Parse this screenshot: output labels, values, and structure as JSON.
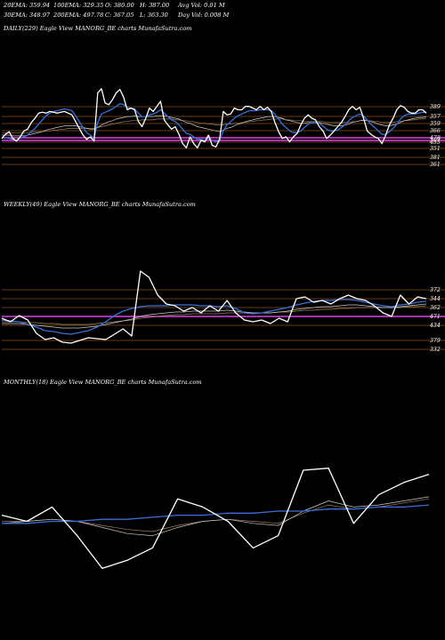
{
  "header": {
    "row1": [
      "20EMA: 359.94",
      "100EMA: 329.35",
      "O: 380.00",
      "H: 387.00",
      "Avg Vol: 0.01 M"
    ],
    "row2": [
      "30EMA: 348.97",
      "200EMA: 497.78",
      "C: 367.05",
      "L: 363.30",
      "Day Vol: 0.008 M"
    ]
  },
  "colors": {
    "background": "#000000",
    "price": "#ffffff",
    "ema_fast": "#3a6fd8",
    "ema_mid": "#c9c9c9",
    "ema_slow": "#a08060",
    "level_line": "#c8782a",
    "highlight_line": "#e040e0"
  },
  "chart_data": [
    {
      "type": "line",
      "title": "DAILY(229) Eagle   View  MANORG_BE charts MunafaSutra.com",
      "level_labels": [
        "389",
        "357",
        "359",
        "366",
        "478",
        "397",
        "455",
        "351",
        "381",
        "361"
      ],
      "series": [
        {
          "values": [
            0.36,
            0.41,
            0.44,
            0.36,
            0.33,
            0.38,
            0.45,
            0.47,
            0.55,
            0.6,
            0.66,
            0.67,
            0.66,
            0.68,
            0.67,
            0.66,
            0.67,
            0.68,
            0.66,
            0.64,
            0.56,
            0.48,
            0.4,
            0.35,
            0.38,
            0.33,
            0.9,
            0.95,
            0.78,
            0.76,
            0.82,
            0.9,
            0.94,
            0.85,
            0.7,
            0.72,
            0.7,
            0.56,
            0.5,
            0.6,
            0.72,
            0.68,
            0.74,
            0.8,
            0.58,
            0.52,
            0.47,
            0.5,
            0.41,
            0.3,
            0.25,
            0.38,
            0.3,
            0.25,
            0.34,
            0.32,
            0.4,
            0.28,
            0.26,
            0.35,
            0.68,
            0.64,
            0.65,
            0.72,
            0.7,
            0.7,
            0.74,
            0.74,
            0.72,
            0.7,
            0.74,
            0.7,
            0.73,
            0.68,
            0.55,
            0.44,
            0.36,
            0.38,
            0.32,
            0.38,
            0.42,
            0.52,
            0.6,
            0.64,
            0.6,
            0.58,
            0.5,
            0.45,
            0.36,
            0.4,
            0.45,
            0.5,
            0.55,
            0.62,
            0.7,
            0.74,
            0.7,
            0.73,
            0.6,
            0.45,
            0.41,
            0.38,
            0.36,
            0.3,
            0.4,
            0.52,
            0.6,
            0.7,
            0.75,
            0.73,
            0.68,
            0.66,
            0.66,
            0.7,
            0.7,
            0.66
          ]
        },
        {
          "values": [
            0.36,
            0.37,
            0.36,
            0.35,
            0.34,
            0.36,
            0.38,
            0.4,
            0.44,
            0.48,
            0.53,
            0.58,
            0.63,
            0.66,
            0.68,
            0.69,
            0.7,
            0.71,
            0.7,
            0.69,
            0.63,
            0.56,
            0.49,
            0.43,
            0.4,
            0.36,
            0.55,
            0.65,
            0.67,
            0.69,
            0.71,
            0.74,
            0.77,
            0.76,
            0.73,
            0.72,
            0.71,
            0.66,
            0.62,
            0.62,
            0.64,
            0.65,
            0.67,
            0.7,
            0.66,
            0.62,
            0.58,
            0.56,
            0.52,
            0.47,
            0.42,
            0.41,
            0.38,
            0.35,
            0.35,
            0.34,
            0.36,
            0.34,
            0.32,
            0.33,
            0.45,
            0.52,
            0.56,
            0.6,
            0.63,
            0.65,
            0.67,
            0.69,
            0.69,
            0.69,
            0.7,
            0.7,
            0.7,
            0.69,
            0.65,
            0.59,
            0.53,
            0.49,
            0.45,
            0.43,
            0.43,
            0.45,
            0.49,
            0.53,
            0.55,
            0.55,
            0.54,
            0.51,
            0.47,
            0.45,
            0.45,
            0.46,
            0.49,
            0.52,
            0.57,
            0.61,
            0.63,
            0.65,
            0.63,
            0.58,
            0.53,
            0.49,
            0.45,
            0.41,
            0.41,
            0.44,
            0.48,
            0.53,
            0.59,
            0.63,
            0.65,
            0.65,
            0.65,
            0.66,
            0.67,
            0.67
          ]
        },
        {
          "values": [
            0.4,
            0.4,
            0.4,
            0.39,
            0.39,
            0.39,
            0.39,
            0.4,
            0.41,
            0.42,
            0.43,
            0.44,
            0.46,
            0.47,
            0.48,
            0.49,
            0.5,
            0.51,
            0.51,
            0.51,
            0.51,
            0.5,
            0.49,
            0.48,
            0.47,
            0.47,
            0.49,
            0.52,
            0.54,
            0.56,
            0.57,
            0.59,
            0.6,
            0.61,
            0.62,
            0.62,
            0.63,
            0.62,
            0.62,
            0.62,
            0.62,
            0.62,
            0.63,
            0.63,
            0.63,
            0.62,
            0.61,
            0.6,
            0.59,
            0.57,
            0.55,
            0.54,
            0.52,
            0.5,
            0.49,
            0.48,
            0.47,
            0.46,
            0.45,
            0.44,
            0.46,
            0.48,
            0.49,
            0.51,
            0.53,
            0.54,
            0.56,
            0.57,
            0.58,
            0.59,
            0.6,
            0.61,
            0.62,
            0.62,
            0.62,
            0.61,
            0.6,
            0.58,
            0.57,
            0.56,
            0.55,
            0.54,
            0.54,
            0.55,
            0.55,
            0.55,
            0.55,
            0.54,
            0.53,
            0.52,
            0.51,
            0.51,
            0.51,
            0.52,
            0.53,
            0.55,
            0.56,
            0.57,
            0.58,
            0.57,
            0.56,
            0.55,
            0.53,
            0.52,
            0.51,
            0.51,
            0.52,
            0.53,
            0.55,
            0.57,
            0.58,
            0.59,
            0.6,
            0.61,
            0.61,
            0.62
          ]
        },
        {
          "values": [
            0.43,
            0.43,
            0.43,
            0.43,
            0.43,
            0.43,
            0.43,
            0.43,
            0.43,
            0.44,
            0.44,
            0.44,
            0.45,
            0.45,
            0.46,
            0.46,
            0.47,
            0.47,
            0.48,
            0.48,
            0.48,
            0.48,
            0.48,
            0.48,
            0.48,
            0.48,
            0.49,
            0.5,
            0.51,
            0.52,
            0.53,
            0.54,
            0.55,
            0.56,
            0.56,
            0.57,
            0.57,
            0.57,
            0.58,
            0.58,
            0.58,
            0.58,
            0.59,
            0.59,
            0.59,
            0.59,
            0.59,
            0.58,
            0.58,
            0.57,
            0.57,
            0.56,
            0.56,
            0.55,
            0.54,
            0.54,
            0.53,
            0.53,
            0.52,
            0.52,
            0.52,
            0.53,
            0.53,
            0.54,
            0.54,
            0.55,
            0.55,
            0.56,
            0.56,
            0.57,
            0.57,
            0.58,
            0.58,
            0.59,
            0.59,
            0.59,
            0.59,
            0.58,
            0.58,
            0.57,
            0.57,
            0.57,
            0.56,
            0.56,
            0.56,
            0.56,
            0.56,
            0.56,
            0.55,
            0.55,
            0.55,
            0.55,
            0.55,
            0.55,
            0.55,
            0.56,
            0.56,
            0.57,
            0.57,
            0.57,
            0.57,
            0.56,
            0.56,
            0.55,
            0.55,
            0.55,
            0.55,
            0.56,
            0.56,
            0.57,
            0.57,
            0.58,
            0.58,
            0.59,
            0.59,
            0.6
          ]
        }
      ]
    },
    {
      "type": "line",
      "title": "WEEKLY(49) Eagle   View  MANORG_BE charts MunafaSutra.com",
      "level_labels": [
        "372",
        "344",
        "362",
        "471",
        "434",
        "379",
        "332"
      ],
      "series": [
        {
          "values": [
            0.42,
            0.38,
            0.45,
            0.4,
            0.25,
            0.18,
            0.2,
            0.15,
            0.14,
            0.17,
            0.2,
            0.19,
            0.18,
            0.24,
            0.3,
            0.22,
            0.95,
            0.88,
            0.68,
            0.58,
            0.56,
            0.5,
            0.54,
            0.48,
            0.56,
            0.5,
            0.62,
            0.48,
            0.4,
            0.38,
            0.4,
            0.36,
            0.42,
            0.38,
            0.64,
            0.66,
            0.6,
            0.62,
            0.58,
            0.64,
            0.68,
            0.64,
            0.62,
            0.56,
            0.48,
            0.44,
            0.68,
            0.58,
            0.66,
            0.64
          ]
        },
        {
          "values": [
            0.4,
            0.39,
            0.38,
            0.35,
            0.32,
            0.28,
            0.27,
            0.25,
            0.24,
            0.26,
            0.28,
            0.32,
            0.38,
            0.45,
            0.5,
            0.53,
            0.55,
            0.56,
            0.56,
            0.56,
            0.57,
            0.57,
            0.57,
            0.56,
            0.56,
            0.55,
            0.56,
            0.53,
            0.48,
            0.47,
            0.48,
            0.5,
            0.52,
            0.54,
            0.57,
            0.59,
            0.61,
            0.62,
            0.62,
            0.63,
            0.63,
            0.62,
            0.6,
            0.58,
            0.56,
            0.55,
            0.57,
            0.58,
            0.6,
            0.61
          ]
        },
        {
          "values": [
            0.36,
            0.36,
            0.36,
            0.35,
            0.34,
            0.33,
            0.32,
            0.31,
            0.31,
            0.31,
            0.32,
            0.33,
            0.35,
            0.37,
            0.39,
            0.41,
            0.44,
            0.46,
            0.47,
            0.48,
            0.49,
            0.49,
            0.5,
            0.5,
            0.5,
            0.5,
            0.51,
            0.5,
            0.49,
            0.48,
            0.48,
            0.48,
            0.49,
            0.5,
            0.52,
            0.53,
            0.54,
            0.55,
            0.55,
            0.56,
            0.57,
            0.57,
            0.56,
            0.55,
            0.54,
            0.54,
            0.55,
            0.56,
            0.57,
            0.58
          ]
        },
        {
          "values": [
            0.38,
            0.38,
            0.38,
            0.37,
            0.37,
            0.36,
            0.36,
            0.35,
            0.35,
            0.35,
            0.35,
            0.36,
            0.37,
            0.38,
            0.39,
            0.4,
            0.42,
            0.43,
            0.44,
            0.45,
            0.46,
            0.46,
            0.47,
            0.47,
            0.47,
            0.47,
            0.48,
            0.48,
            0.48,
            0.48,
            0.48,
            0.48,
            0.49,
            0.49,
            0.5,
            0.51,
            0.51,
            0.52,
            0.52,
            0.53,
            0.53,
            0.54,
            0.54,
            0.54,
            0.54,
            0.54,
            0.54,
            0.55,
            0.55,
            0.56
          ]
        }
      ]
    },
    {
      "type": "line",
      "title": "MONTHLY(18) Eagle   View  MANORG_BE charts MunafaSutra.com",
      "series": [
        {
          "values": [
            0.48,
            0.45,
            0.52,
            0.38,
            0.22,
            0.26,
            0.32,
            0.56,
            0.52,
            0.45,
            0.32,
            0.38,
            0.7,
            0.71,
            0.44,
            0.58,
            0.64,
            0.68
          ]
        },
        {
          "values": [
            0.44,
            0.44,
            0.45,
            0.45,
            0.46,
            0.46,
            0.47,
            0.48,
            0.48,
            0.49,
            0.49,
            0.5,
            0.5,
            0.51,
            0.51,
            0.52,
            0.52,
            0.53
          ]
        },
        {
          "values": [
            0.44,
            0.45,
            0.46,
            0.45,
            0.42,
            0.39,
            0.38,
            0.42,
            0.45,
            0.46,
            0.44,
            0.43,
            0.5,
            0.55,
            0.52,
            0.53,
            0.55,
            0.57
          ]
        },
        {
          "values": [
            0.45,
            0.45,
            0.46,
            0.45,
            0.43,
            0.41,
            0.4,
            0.43,
            0.45,
            0.46,
            0.45,
            0.44,
            0.49,
            0.53,
            0.51,
            0.52,
            0.54,
            0.56
          ]
        }
      ]
    }
  ]
}
